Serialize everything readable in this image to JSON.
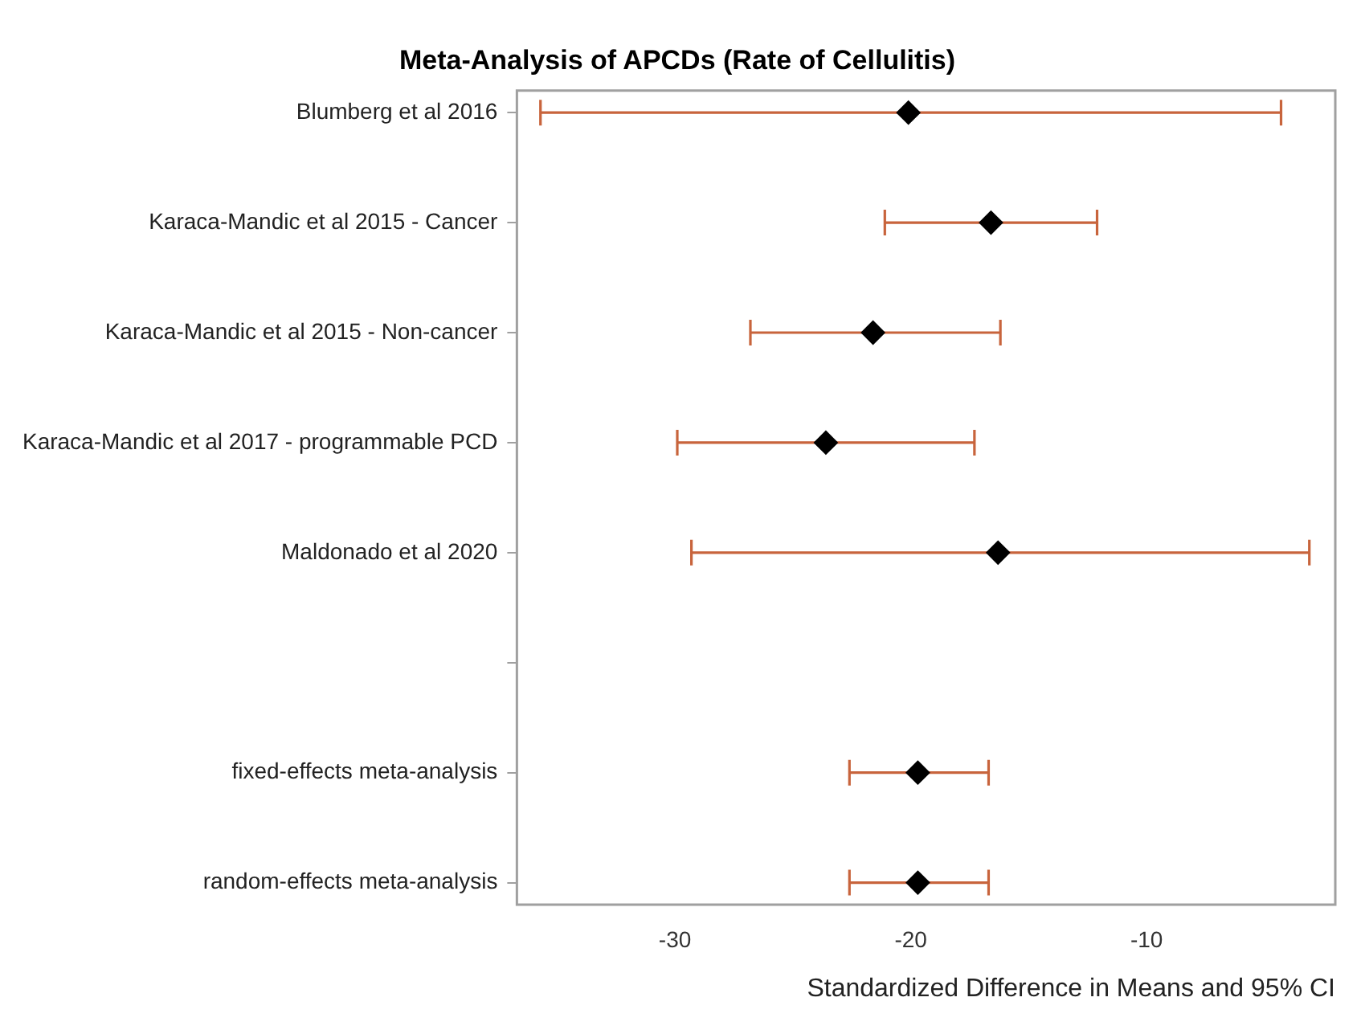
{
  "chart_data": {
    "type": "scatter",
    "orientation": "horizontal",
    "title": "Meta-Analysis of APCDs (Rate of Cellulitis)",
    "xlabel": "Standardized Difference in Means and 95% CI",
    "categories": [
      "Blumberg et al 2016",
      "Karaca-Mandic et al 2015 - Cancer",
      "Karaca-Mandic et al 2015 - Non-cancer",
      "Karaca-Mandic et al 2017 - programmable PCD",
      "Maldonado et al 2020",
      null,
      "fixed-effects meta-analysis",
      "random-effects meta-analysis"
    ],
    "values": [
      -20.1,
      -16.6,
      -21.6,
      -23.6,
      -16.3,
      null,
      -19.7,
      -19.7
    ],
    "errors": [
      [
        -35.7,
        -4.3
      ],
      [
        -21.1,
        -12.1
      ],
      [
        -26.8,
        -16.2
      ],
      [
        -29.9,
        -17.3
      ],
      [
        -29.3,
        -3.1
      ],
      null,
      [
        -22.6,
        -16.7
      ],
      [
        -22.6,
        -16.7
      ]
    ],
    "color": "#000000",
    "marker": "diamond",
    "xlim": [
      -36.7,
      -2
    ],
    "xticks": [
      -30,
      -20,
      -10
    ],
    "grid": false,
    "legend": false
  }
}
